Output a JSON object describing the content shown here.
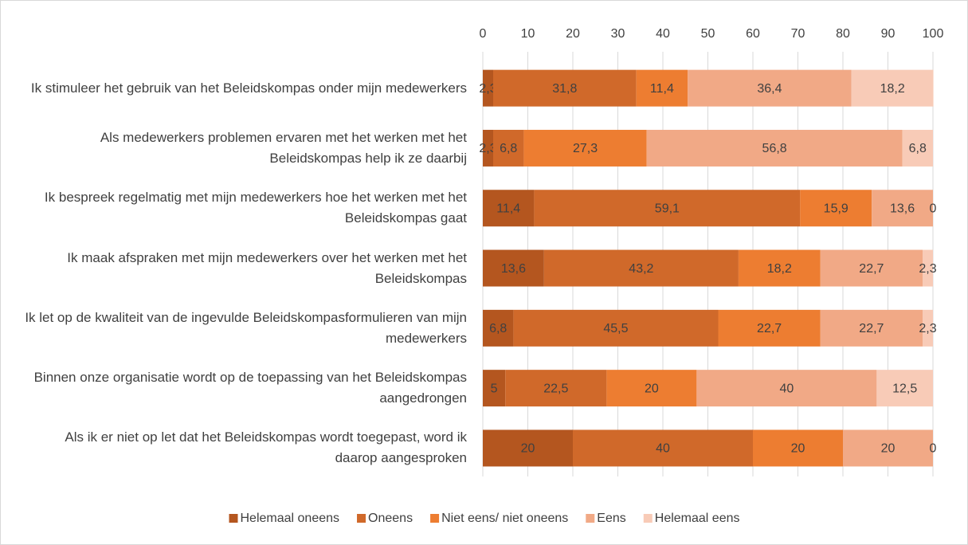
{
  "chart_data": {
    "type": "stacked_barh",
    "categories": [
      "Ik stimuleer het gebruik van het Beleidskompas onder mijn medewerkers",
      "Als medewerkers problemen ervaren met het werken met het Beleidskompas help ik ze daarbij",
      "Ik bespreek regelmatig met mijn medewerkers hoe het werken met het Beleidskompas gaat",
      "Ik maak afspraken met mijn medewerkers over het werken met het Beleidskompas",
      "Ik let op de kwaliteit van de ingevulde Beleidskompasformulieren van mijn medewerkers",
      "Binnen onze organisatie wordt op de toepassing van het Beleidskompas aangedrongen",
      "Als ik er niet op let dat het Beleidskompas wordt toegepast, word ik daarop aangesproken"
    ],
    "series": [
      {
        "name": "Helemaal oneens",
        "color": "#b4561f",
        "values": [
          2.3,
          2.3,
          11.4,
          13.6,
          6.8,
          5,
          20
        ],
        "value_labels": [
          "2,3",
          "2,3",
          "11,4",
          "13,6",
          "6,8",
          "5",
          "20"
        ]
      },
      {
        "name": "Oneens",
        "color": "#d0692a",
        "values": [
          31.8,
          6.8,
          59.1,
          43.2,
          45.5,
          22.5,
          40
        ],
        "value_labels": [
          "31,8",
          "6,8",
          "59,1",
          "43,2",
          "45,5",
          "22,5",
          "40"
        ]
      },
      {
        "name": "Niet eens/ niet oneens",
        "color": "#ed7d31",
        "values": [
          11.4,
          27.3,
          15.9,
          18.2,
          22.7,
          20,
          20
        ],
        "value_labels": [
          "11,4",
          "27,3",
          "15,9",
          "18,2",
          "22,7",
          "20",
          "20"
        ]
      },
      {
        "name": "Eens",
        "color": "#f1a986",
        "values": [
          36.4,
          56.8,
          13.6,
          22.7,
          22.7,
          40,
          20
        ],
        "value_labels": [
          "36,4",
          "56,8",
          "13,6",
          "22,7",
          "22,7",
          "40",
          "20"
        ]
      },
      {
        "name": "Helemaal eens",
        "color": "#f8cbb7",
        "values": [
          18.2,
          6.8,
          0,
          2.3,
          2.3,
          12.5,
          0
        ],
        "value_labels": [
          "18,2",
          "6,8",
          "0",
          "2,3",
          "2,3",
          "12,5",
          "0"
        ]
      }
    ],
    "xlim": [
      0,
      100
    ],
    "xticks": [
      0,
      10,
      20,
      30,
      40,
      50,
      60,
      70,
      80,
      90,
      100
    ],
    "grid": true,
    "legend": "bottom"
  }
}
